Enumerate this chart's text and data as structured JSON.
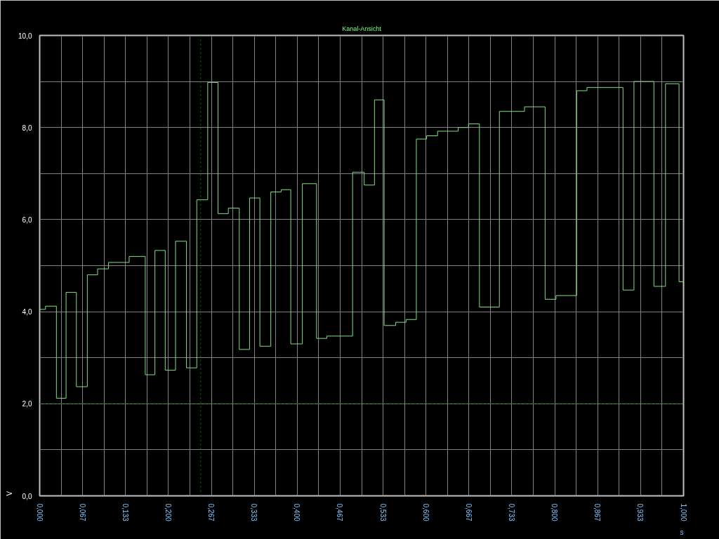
{
  "chart_data": {
    "type": "step",
    "title": "Kanal-Ansicht",
    "xlabel": "s",
    "ylabel": "V",
    "x": [
      0,
      0.009,
      0.026,
      0.041,
      0.057,
      0.074,
      0.09,
      0.107,
      0.139,
      0.164,
      0.179,
      0.195,
      0.211,
      0.228,
      0.244,
      0.261,
      0.277,
      0.293,
      0.31,
      0.326,
      0.342,
      0.359,
      0.375,
      0.39,
      0.408,
      0.43,
      0.446,
      0.486,
      0.504,
      0.52,
      0.535,
      0.553,
      0.569,
      0.585,
      0.601,
      0.618,
      0.65,
      0.666,
      0.683,
      0.714,
      0.753,
      0.785,
      0.802,
      0.834,
      0.85,
      0.906,
      0.923,
      0.954,
      0.972,
      0.993,
      1.0
    ],
    "series": [
      {
        "color": "#80e080",
        "values": [
          4.05,
          4.12,
          2.12,
          4.42,
          2.37,
          4.8,
          4.93,
          5.07,
          5.2,
          2.63,
          5.33,
          2.73,
          5.53,
          2.78,
          6.43,
          8.98,
          6.13,
          6.25,
          3.18,
          6.47,
          3.25,
          6.6,
          6.65,
          3.3,
          6.78,
          3.42,
          3.47,
          7.03,
          6.75,
          8.6,
          3.7,
          3.77,
          3.83,
          7.75,
          7.82,
          7.92,
          8.0,
          8.08,
          4.1,
          8.35,
          8.45,
          4.27,
          4.35,
          8.8,
          8.87,
          4.47,
          9.0,
          4.55,
          8.95,
          4.65,
          4.65
        ]
      }
    ],
    "xlim": [
      0,
      1
    ],
    "ylim": [
      0,
      10
    ],
    "xticks": [
      {
        "value": 0,
        "label": "0,000"
      },
      {
        "value": 0.0333,
        "label": null
      },
      {
        "value": 0.0667,
        "label": "0,067"
      },
      {
        "value": 0.1,
        "label": null
      },
      {
        "value": 0.1333,
        "label": "0,133"
      },
      {
        "value": 0.1667,
        "label": null
      },
      {
        "value": 0.2,
        "label": "0,200"
      },
      {
        "value": 0.2333,
        "label": null
      },
      {
        "value": 0.2667,
        "label": "0,267"
      },
      {
        "value": 0.3,
        "label": null
      },
      {
        "value": 0.3333,
        "label": "0,333"
      },
      {
        "value": 0.3667,
        "label": null
      },
      {
        "value": 0.4,
        "label": "0,400"
      },
      {
        "value": 0.4333,
        "label": null
      },
      {
        "value": 0.4667,
        "label": "0,467"
      },
      {
        "value": 0.5,
        "label": null
      },
      {
        "value": 0.5333,
        "label": "0,533"
      },
      {
        "value": 0.5667,
        "label": null
      },
      {
        "value": 0.6,
        "label": "0,600"
      },
      {
        "value": 0.6333,
        "label": null
      },
      {
        "value": 0.6667,
        "label": "0,667"
      },
      {
        "value": 0.7,
        "label": null
      },
      {
        "value": 0.7333,
        "label": "0,733"
      },
      {
        "value": 0.7667,
        "label": null
      },
      {
        "value": 0.8,
        "label": "0,800"
      },
      {
        "value": 0.8333,
        "label": null
      },
      {
        "value": 0.8667,
        "label": "0,867"
      },
      {
        "value": 0.9,
        "label": null
      },
      {
        "value": 0.9333,
        "label": "0,933"
      },
      {
        "value": 0.9667,
        "label": null
      },
      {
        "value": 1,
        "label": "1,000"
      }
    ],
    "yticks": [
      {
        "value": 0,
        "label": "0,0"
      },
      {
        "value": 1,
        "label": null
      },
      {
        "value": 2,
        "label": "2,0"
      },
      {
        "value": 3,
        "label": null
      },
      {
        "value": 4,
        "label": "4,0"
      },
      {
        "value": 5,
        "label": null
      },
      {
        "value": 6,
        "label": "6,0"
      },
      {
        "value": 7,
        "label": null
      },
      {
        "value": 8,
        "label": "8,0"
      },
      {
        "value": 9,
        "label": null
      },
      {
        "value": 10,
        "label": "10,0"
      }
    ],
    "grid": true,
    "marker": "none",
    "line_style": "solid",
    "ref_lines": [
      {
        "axis": "y",
        "value": 2.0,
        "color": "#008000",
        "line_style": "dotted"
      },
      {
        "axis": "x",
        "value": 0.25,
        "color": "#008000",
        "line_style": "dotted"
      }
    ]
  }
}
